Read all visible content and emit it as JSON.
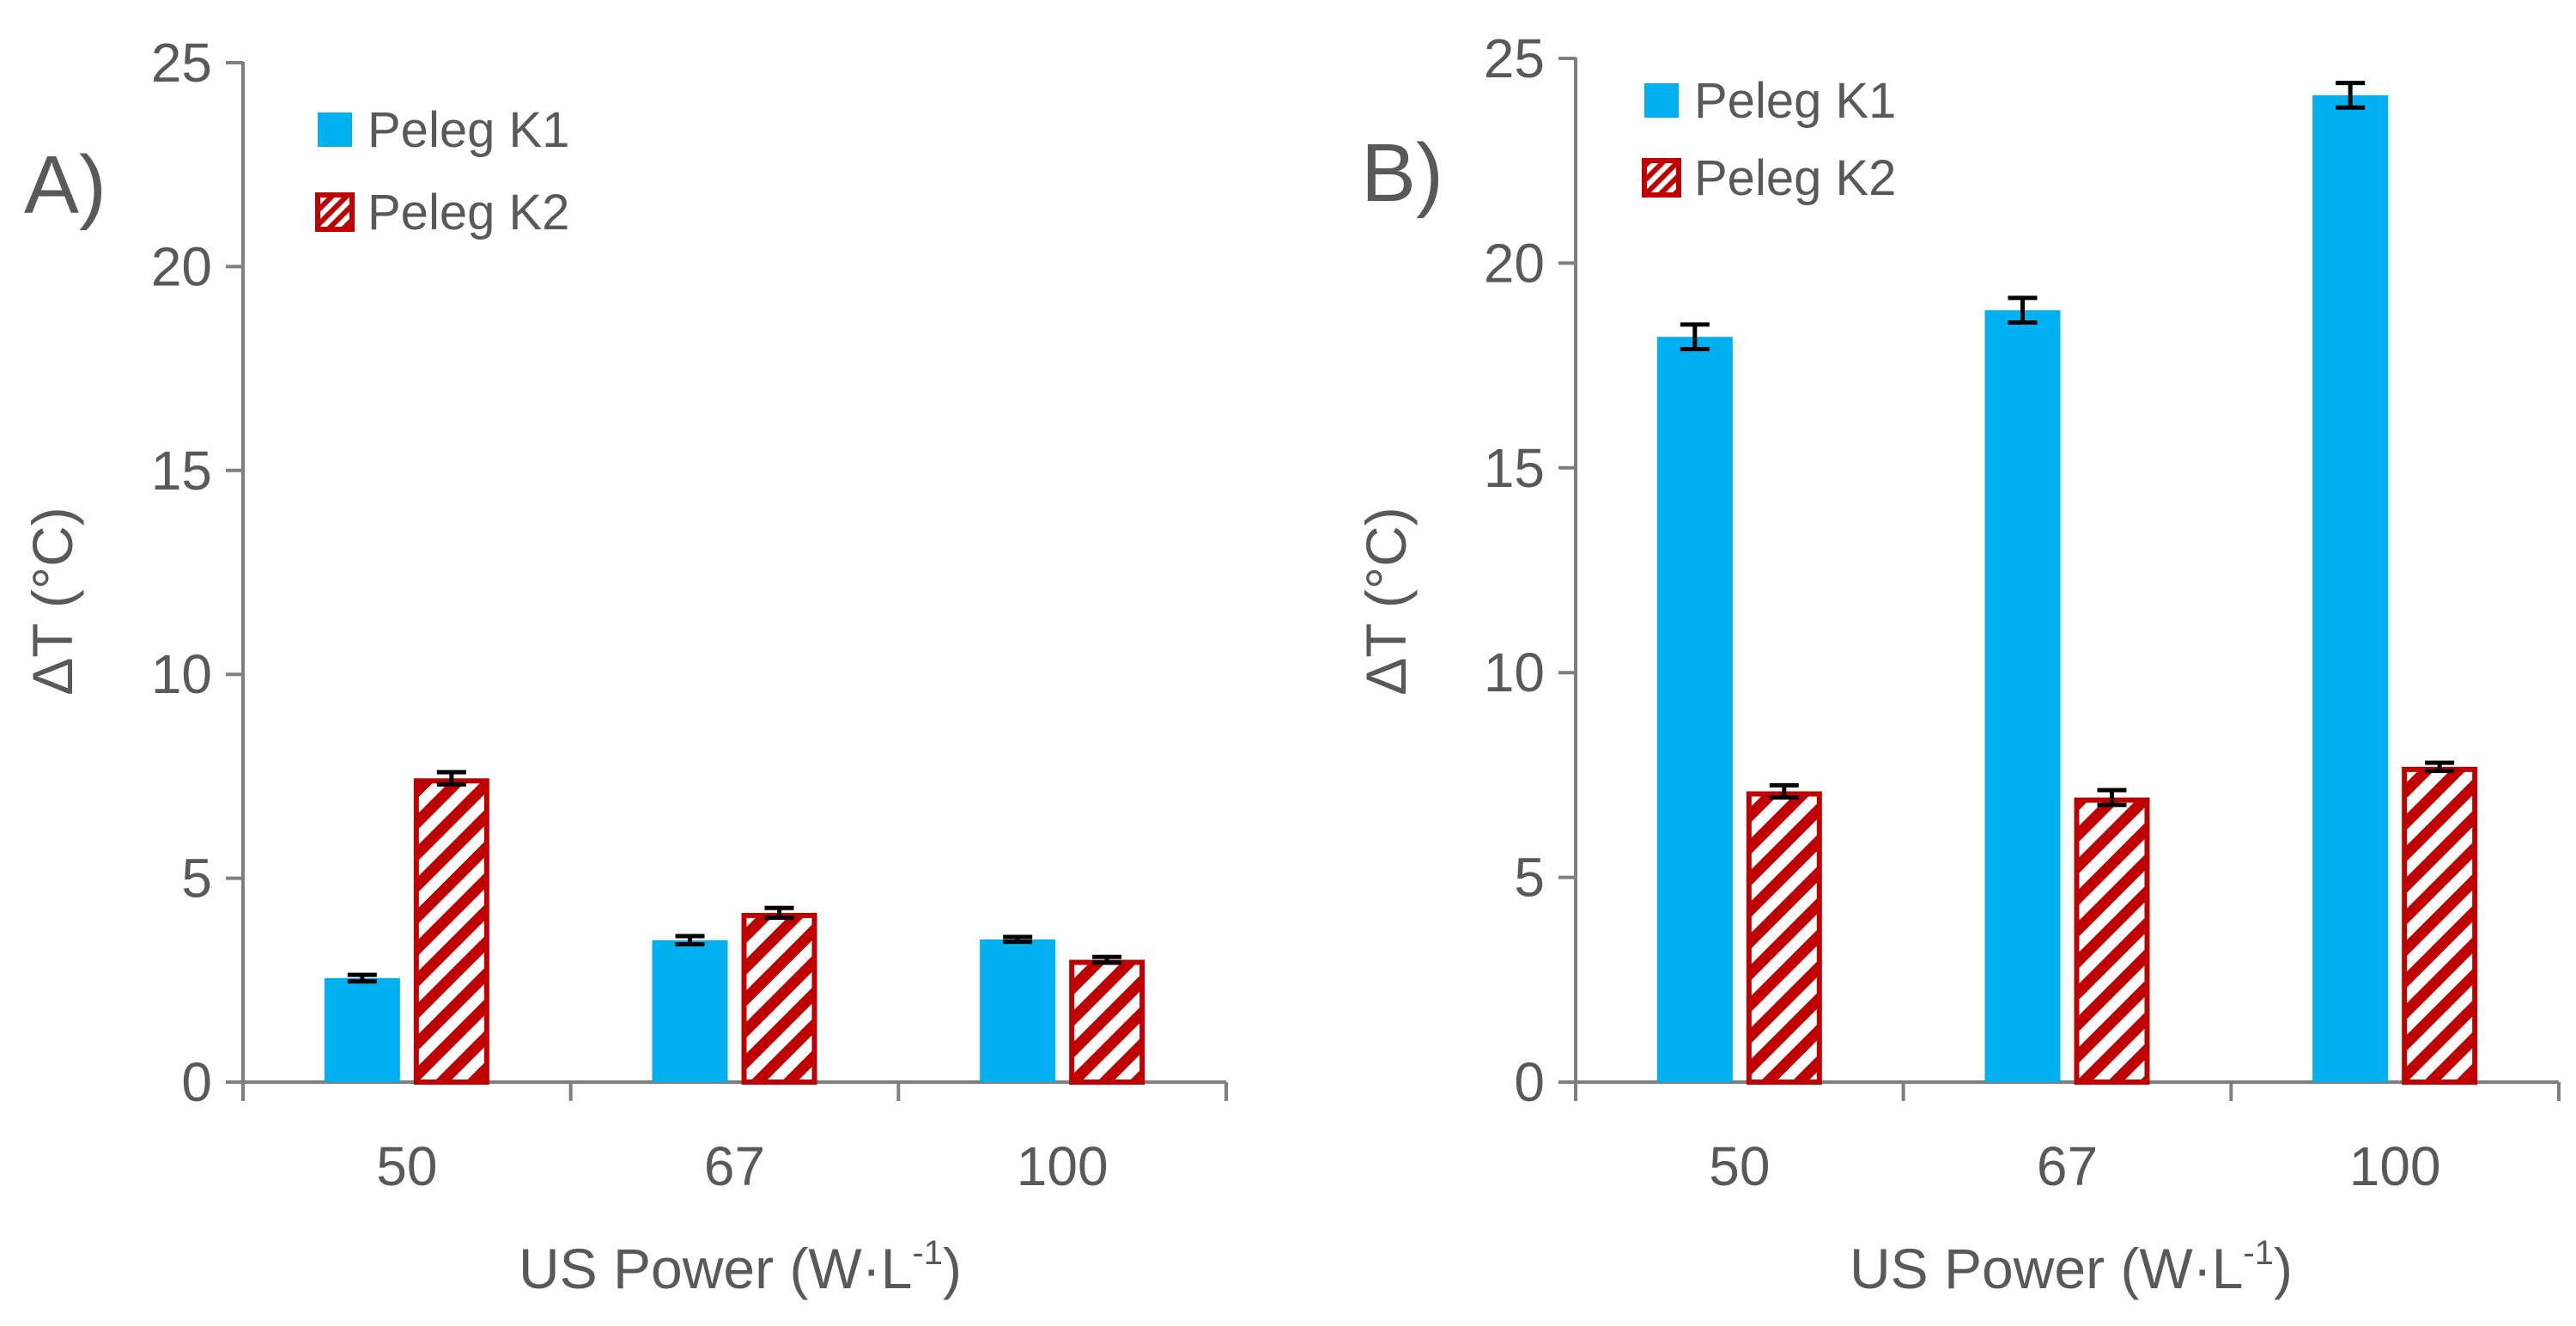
{
  "chart_data": [
    {
      "type": "bar",
      "panel_label": "A)",
      "categories": [
        "50",
        "67",
        "100"
      ],
      "series": [
        {
          "name": "Peleg K1",
          "values": [
            2.55,
            3.48,
            3.5
          ],
          "errors": [
            0.08,
            0.1,
            0.06
          ],
          "color": "#00b0f0",
          "pattern": "solid"
        },
        {
          "name": "Peleg K2",
          "values": [
            7.45,
            4.15,
            3.0
          ],
          "errors": [
            0.15,
            0.12,
            0.07
          ],
          "color": "#c00000",
          "pattern": "diagonal-stripes"
        }
      ],
      "xlabel_main": "US Power (W·L",
      "xlabel_sup": "-1",
      "xlabel_end": ")",
      "ylabel": "ΔT (°C)",
      "ylim": [
        0,
        25
      ],
      "yticks": [
        "0",
        "5",
        "10",
        "15",
        "20",
        "25"
      ],
      "legend_position": "top-left",
      "grid": false
    },
    {
      "type": "bar",
      "panel_label": "B)",
      "categories": [
        "50",
        "67",
        "100"
      ],
      "series": [
        {
          "name": "Peleg K1",
          "values": [
            18.2,
            18.85,
            24.1
          ],
          "errors": [
            0.3,
            0.3,
            0.3
          ],
          "color": "#00b0f0",
          "pattern": "solid"
        },
        {
          "name": "Peleg K2",
          "values": [
            7.1,
            6.95,
            7.7
          ],
          "errors": [
            0.15,
            0.18,
            0.1
          ],
          "color": "#c00000",
          "pattern": "diagonal-stripes"
        }
      ],
      "xlabel_main": "US Power (W·L",
      "xlabel_sup": "-1",
      "xlabel_end": ")",
      "ylabel": "ΔT (°C)",
      "ylim": [
        0,
        25
      ],
      "yticks": [
        "0",
        "5",
        "10",
        "15",
        "20",
        "25"
      ],
      "legend_position": "top-left",
      "grid": false
    }
  ]
}
